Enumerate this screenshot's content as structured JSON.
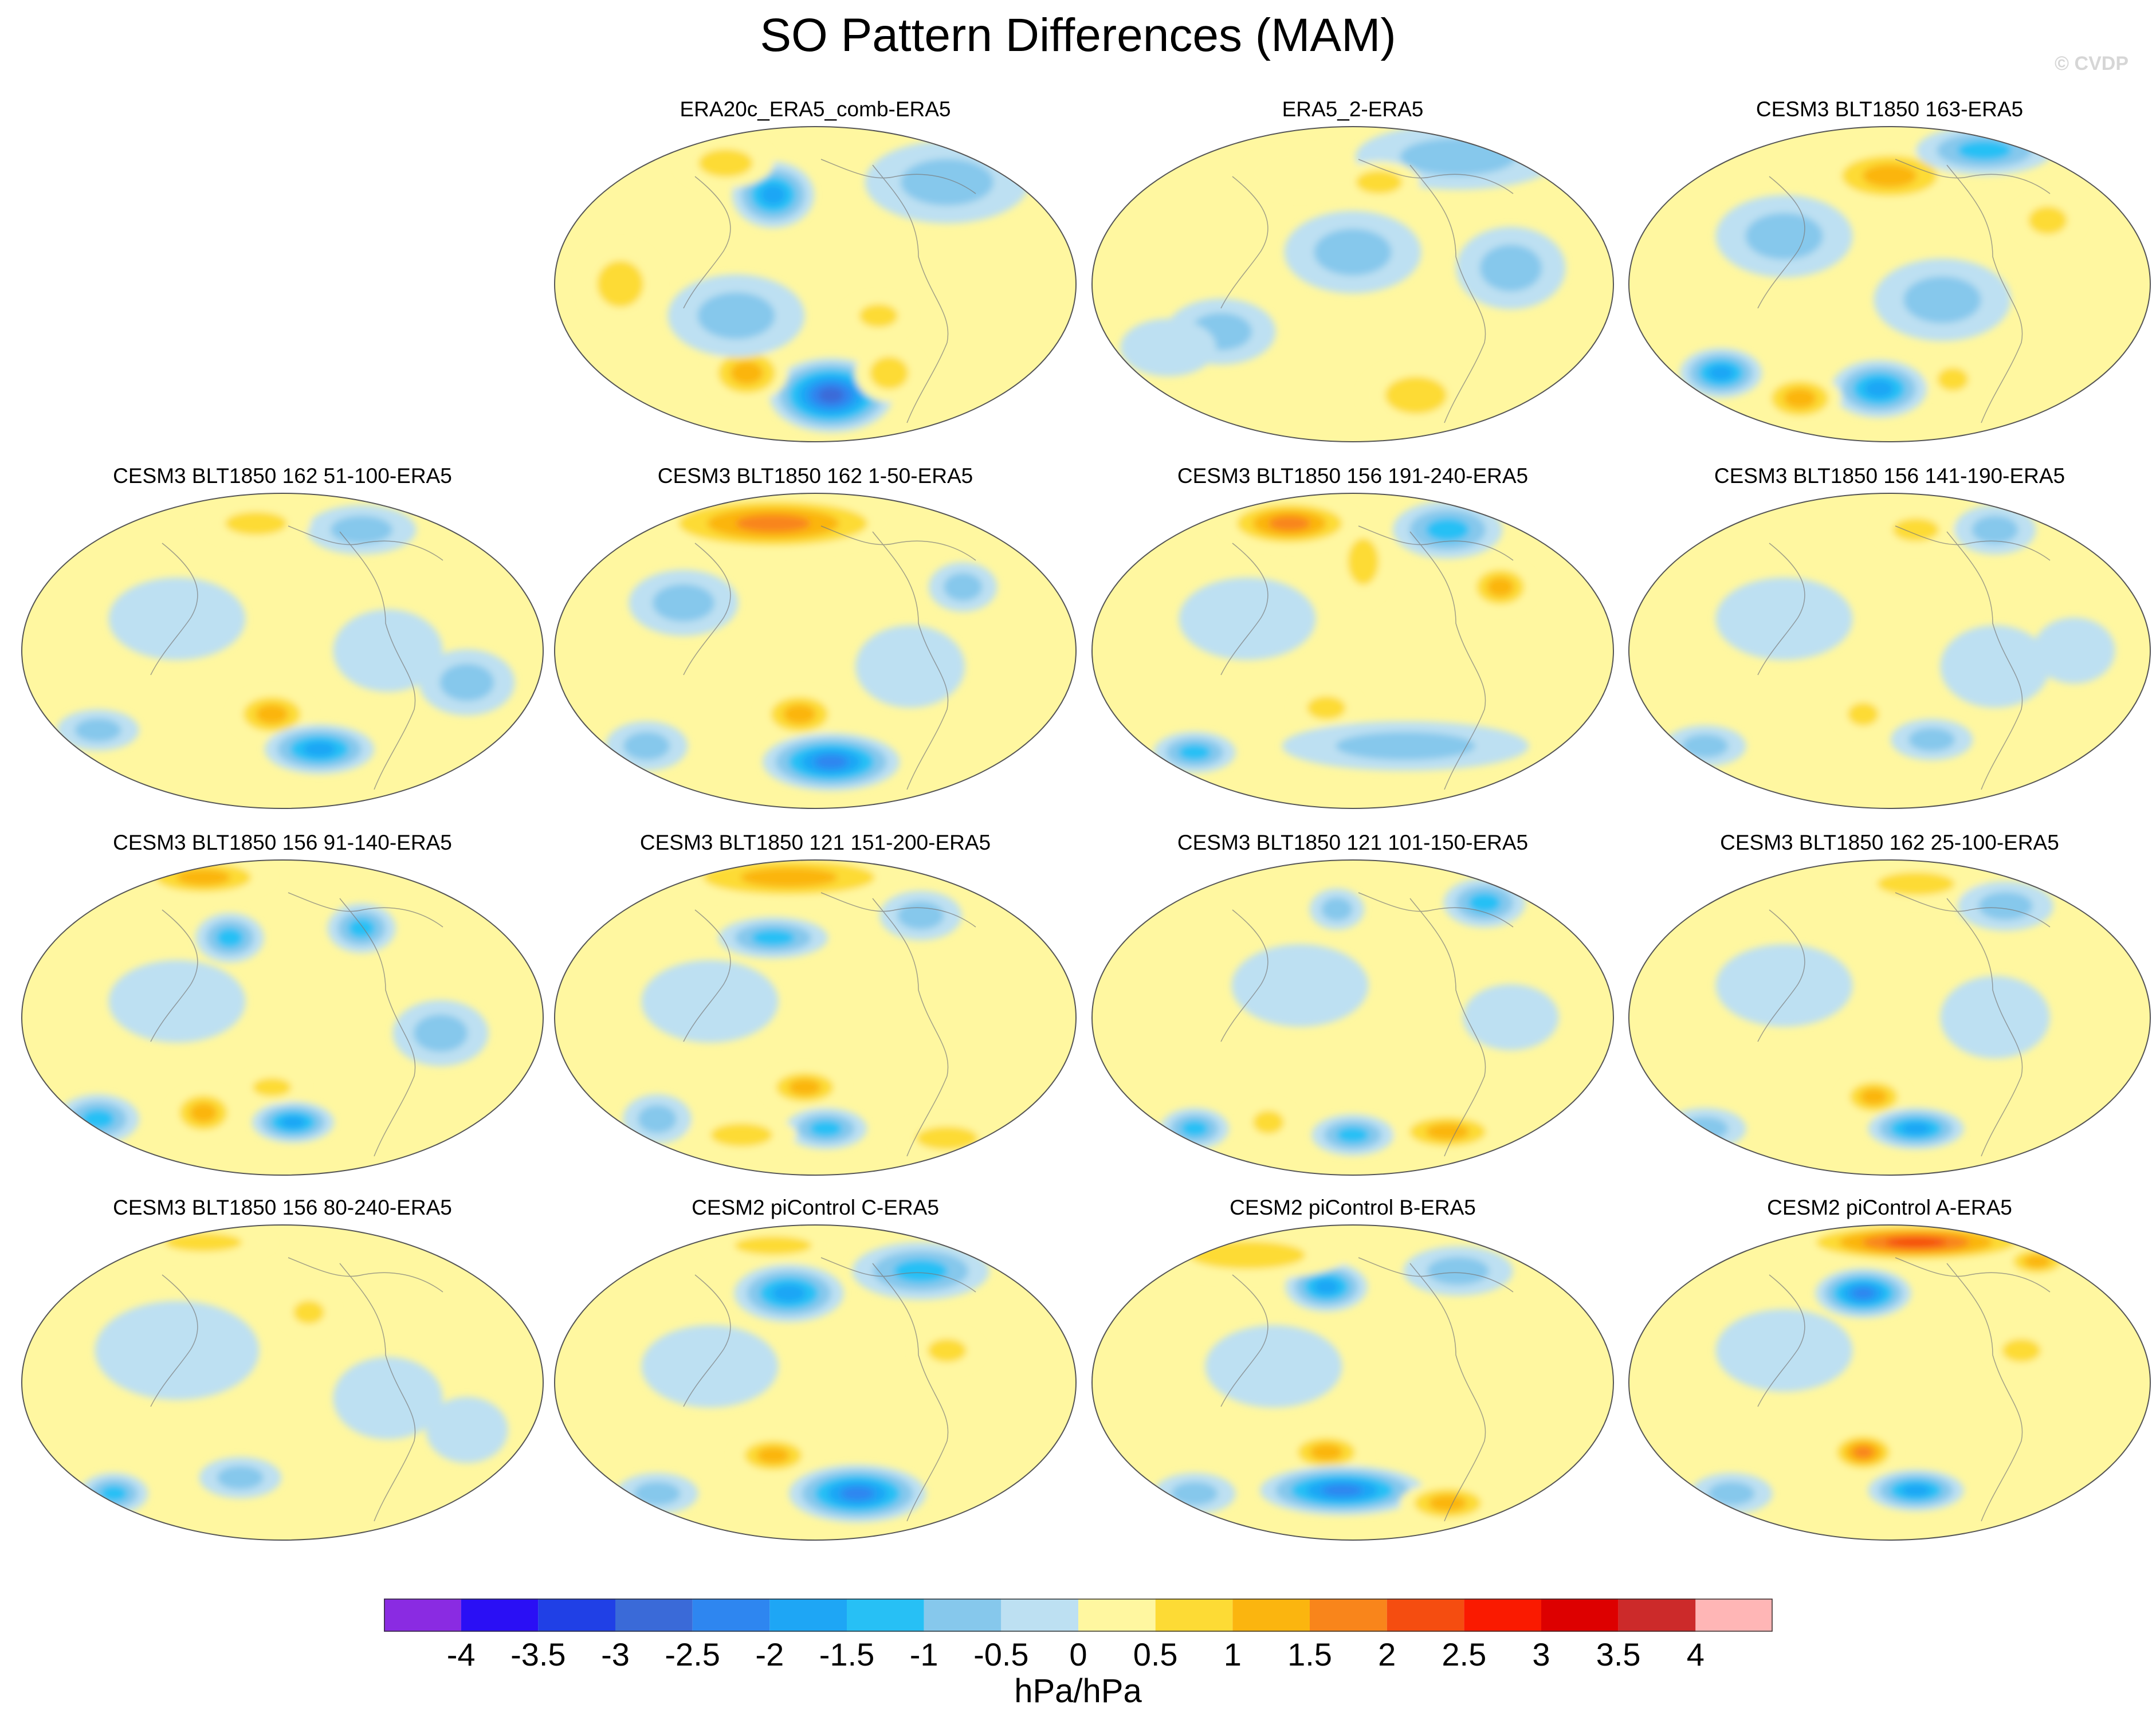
{
  "chart_data": {
    "type": "heatmap",
    "title": "SO Pattern Differences (MAM)",
    "credit": "© CVDP",
    "projection": "global map (Robinson-like)",
    "colorbar": {
      "label": "hPa/hPa",
      "ticks": [
        "-4",
        "-3.5",
        "-3",
        "-2.5",
        "-2",
        "-1.5",
        "-1",
        "-0.5",
        "0",
        "0.5",
        "1",
        "1.5",
        "2",
        "2.5",
        "3",
        "3.5",
        "4"
      ],
      "levels": [
        -4,
        -3.5,
        -3,
        -2.5,
        -2,
        -1.5,
        -1,
        -0.5,
        0,
        0.5,
        1,
        1.5,
        2,
        2.5,
        3,
        3.5,
        4
      ],
      "colors": [
        "#8a2be2",
        "#2a0ff5",
        "#2040e6",
        "#3a6ad8",
        "#2e86f0",
        "#1ea6f5",
        "#27c0f5",
        "#86c8ec",
        "#bde0f2",
        "#fff7a0",
        "#fddb35",
        "#fbb50f",
        "#f9851b",
        "#f54d10",
        "#fa1a00",
        "#dd0000",
        "#cc2a2a",
        "#ffb6b6"
      ]
    },
    "panels": [
      {
        "title": "ERA20c_ERA5_comb-ERA5",
        "row": 0,
        "col": 1,
        "blobs": [
          [
            0.42,
            0.22,
            0.06,
            0.08,
            -1.8
          ],
          [
            0.53,
            0.85,
            0.09,
            0.09,
            -3.0
          ],
          [
            0.37,
            0.78,
            0.06,
            0.07,
            1.2
          ],
          [
            0.64,
            0.78,
            0.05,
            0.07,
            1.0
          ],
          [
            0.33,
            0.12,
            0.07,
            0.06,
            0.8
          ],
          [
            0.75,
            0.18,
            0.12,
            0.1,
            -0.7
          ],
          [
            0.35,
            0.6,
            0.1,
            0.1,
            -0.6
          ],
          [
            0.62,
            0.6,
            0.05,
            0.05,
            0.6
          ],
          [
            0.13,
            0.5,
            0.06,
            0.1,
            0.6
          ]
        ]
      },
      {
        "title": "ERA5_2-ERA5",
        "row": 0,
        "col": 2,
        "blobs": [
          [
            0.7,
            0.1,
            0.15,
            0.08,
            -0.8
          ],
          [
            0.5,
            0.4,
            0.1,
            0.1,
            -0.6
          ],
          [
            0.25,
            0.65,
            0.08,
            0.08,
            -0.6
          ],
          [
            0.62,
            0.85,
            0.08,
            0.08,
            0.8
          ],
          [
            0.15,
            0.7,
            0.07,
            0.07,
            -0.5
          ],
          [
            0.8,
            0.45,
            0.08,
            0.1,
            -0.6
          ],
          [
            0.4,
            0.15,
            0.08,
            0.06,
            0.5
          ],
          [
            0.55,
            0.18,
            0.06,
            0.05,
            0.6
          ]
        ]
      },
      {
        "title": "CESM3 BLT1850 163-ERA5",
        "row": 0,
        "col": 3,
        "blobs": [
          [
            0.5,
            0.16,
            0.1,
            0.07,
            1.2
          ],
          [
            0.68,
            0.08,
            0.1,
            0.06,
            -1.5
          ],
          [
            0.18,
            0.78,
            0.06,
            0.06,
            -1.8
          ],
          [
            0.48,
            0.83,
            0.07,
            0.07,
            -2.0
          ],
          [
            0.33,
            0.86,
            0.06,
            0.06,
            1.2
          ],
          [
            0.62,
            0.8,
            0.04,
            0.05,
            0.8
          ],
          [
            0.8,
            0.3,
            0.05,
            0.06,
            1.0
          ],
          [
            0.3,
            0.35,
            0.1,
            0.1,
            -0.6
          ],
          [
            0.6,
            0.55,
            0.1,
            0.1,
            -0.6
          ]
        ]
      },
      {
        "title": "CESM3 BLT1850 162 51-100-ERA5",
        "row": 1,
        "col": 0,
        "blobs": [
          [
            0.48,
            0.7,
            0.06,
            0.06,
            1.4
          ],
          [
            0.57,
            0.81,
            0.08,
            0.06,
            -1.6
          ],
          [
            0.15,
            0.75,
            0.06,
            0.05,
            -0.8
          ],
          [
            0.65,
            0.12,
            0.08,
            0.06,
            -0.7
          ],
          [
            0.45,
            0.1,
            0.08,
            0.05,
            0.7
          ],
          [
            0.3,
            0.4,
            0.1,
            0.1,
            -0.5
          ],
          [
            0.7,
            0.5,
            0.08,
            0.1,
            -0.5
          ],
          [
            0.85,
            0.6,
            0.07,
            0.08,
            -0.6
          ]
        ]
      },
      {
        "title": "CESM3 BLT1850 162 1-50-ERA5",
        "row": 1,
        "col": 1,
        "blobs": [
          [
            0.42,
            0.1,
            0.18,
            0.07,
            1.6
          ],
          [
            0.47,
            0.7,
            0.06,
            0.06,
            1.5
          ],
          [
            0.53,
            0.85,
            0.1,
            0.07,
            -2.1
          ],
          [
            0.18,
            0.8,
            0.06,
            0.06,
            -0.8
          ],
          [
            0.78,
            0.3,
            0.05,
            0.06,
            -0.7
          ],
          [
            0.25,
            0.35,
            0.08,
            0.08,
            -0.6
          ],
          [
            0.68,
            0.55,
            0.08,
            0.1,
            -0.5
          ]
        ]
      },
      {
        "title": "CESM3 BLT1850 156 191-240-ERA5",
        "row": 1,
        "col": 2,
        "blobs": [
          [
            0.38,
            0.1,
            0.1,
            0.06,
            1.6
          ],
          [
            0.68,
            0.12,
            0.08,
            0.07,
            -1.2
          ],
          [
            0.78,
            0.3,
            0.05,
            0.06,
            1.2
          ],
          [
            0.52,
            0.22,
            0.04,
            0.1,
            0.8
          ],
          [
            0.45,
            0.68,
            0.05,
            0.05,
            1.0
          ],
          [
            0.2,
            0.82,
            0.06,
            0.05,
            -1.3
          ],
          [
            0.6,
            0.8,
            0.18,
            0.06,
            -1.0
          ],
          [
            0.3,
            0.4,
            0.1,
            0.1,
            -0.5
          ]
        ]
      },
      {
        "title": "CESM3 BLT1850 156 141-190-ERA5",
        "row": 1,
        "col": 3,
        "blobs": [
          [
            0.45,
            0.7,
            0.04,
            0.05,
            1.0
          ],
          [
            0.58,
            0.78,
            0.06,
            0.05,
            -0.9
          ],
          [
            0.15,
            0.8,
            0.06,
            0.05,
            -0.8
          ],
          [
            0.55,
            0.12,
            0.06,
            0.05,
            0.9
          ],
          [
            0.7,
            0.12,
            0.06,
            0.06,
            -0.7
          ],
          [
            0.3,
            0.4,
            0.1,
            0.1,
            -0.5
          ],
          [
            0.7,
            0.55,
            0.08,
            0.1,
            -0.5
          ],
          [
            0.85,
            0.5,
            0.06,
            0.08,
            -0.5
          ]
        ]
      },
      {
        "title": "CESM3 BLT1850 156 91-140-ERA5",
        "row": 2,
        "col": 0,
        "blobs": [
          [
            0.35,
            0.06,
            0.1,
            0.05,
            1.2
          ],
          [
            0.4,
            0.25,
            0.05,
            0.06,
            -1.3
          ],
          [
            0.65,
            0.22,
            0.05,
            0.06,
            -1.1
          ],
          [
            0.15,
            0.82,
            0.06,
            0.06,
            -1.3
          ],
          [
            0.35,
            0.8,
            0.05,
            0.06,
            1.3
          ],
          [
            0.52,
            0.83,
            0.06,
            0.05,
            -1.6
          ],
          [
            0.48,
            0.72,
            0.05,
            0.04,
            0.9
          ],
          [
            0.3,
            0.45,
            0.1,
            0.1,
            -0.5
          ],
          [
            0.8,
            0.55,
            0.07,
            0.08,
            -0.6
          ]
        ]
      },
      {
        "title": "CESM3 BLT1850 121 151-200-ERA5",
        "row": 2,
        "col": 1,
        "blobs": [
          [
            0.45,
            0.06,
            0.18,
            0.06,
            1.3
          ],
          [
            0.42,
            0.25,
            0.08,
            0.05,
            -1.1
          ],
          [
            0.7,
            0.18,
            0.06,
            0.06,
            -1.0
          ],
          [
            0.48,
            0.72,
            0.06,
            0.05,
            1.1
          ],
          [
            0.52,
            0.85,
            0.06,
            0.05,
            -1.3
          ],
          [
            0.36,
            0.87,
            0.08,
            0.05,
            1.0
          ],
          [
            0.2,
            0.82,
            0.05,
            0.06,
            -0.9
          ],
          [
            0.75,
            0.88,
            0.08,
            0.05,
            0.9
          ],
          [
            0.3,
            0.45,
            0.1,
            0.1,
            -0.5
          ]
        ]
      },
      {
        "title": "CESM3 BLT1850 121 101-150-ERA5",
        "row": 2,
        "col": 2,
        "blobs": [
          [
            0.75,
            0.14,
            0.06,
            0.06,
            -1.4
          ],
          [
            0.47,
            0.16,
            0.04,
            0.05,
            -0.8
          ],
          [
            0.2,
            0.85,
            0.05,
            0.05,
            -1.2
          ],
          [
            0.5,
            0.87,
            0.06,
            0.05,
            -1.3
          ],
          [
            0.34,
            0.83,
            0.04,
            0.05,
            1.0
          ],
          [
            0.68,
            0.86,
            0.08,
            0.05,
            1.3
          ],
          [
            0.4,
            0.4,
            0.1,
            0.1,
            -0.5
          ],
          [
            0.8,
            0.5,
            0.07,
            0.08,
            -0.5
          ]
        ]
      },
      {
        "title": "CESM3 BLT1850 162 25-100-ERA5",
        "row": 2,
        "col": 3,
        "blobs": [
          [
            0.47,
            0.75,
            0.05,
            0.05,
            1.4
          ],
          [
            0.55,
            0.85,
            0.07,
            0.05,
            -1.6
          ],
          [
            0.15,
            0.85,
            0.06,
            0.05,
            -0.8
          ],
          [
            0.55,
            0.08,
            0.1,
            0.05,
            0.9
          ],
          [
            0.72,
            0.15,
            0.07,
            0.06,
            -0.7
          ],
          [
            0.3,
            0.4,
            0.1,
            0.1,
            -0.5
          ],
          [
            0.7,
            0.5,
            0.08,
            0.1,
            -0.5
          ]
        ]
      },
      {
        "title": "CESM3 BLT1850 156 80-240-ERA5",
        "row": 3,
        "col": 0,
        "blobs": [
          [
            0.35,
            0.06,
            0.1,
            0.04,
            0.9
          ],
          [
            0.55,
            0.28,
            0.04,
            0.05,
            0.8
          ],
          [
            0.18,
            0.85,
            0.05,
            0.05,
            -1.1
          ],
          [
            0.42,
            0.8,
            0.06,
            0.05,
            -0.8
          ],
          [
            0.3,
            0.4,
            0.12,
            0.12,
            -0.5
          ],
          [
            0.7,
            0.55,
            0.08,
            0.1,
            -0.5
          ],
          [
            0.85,
            0.65,
            0.06,
            0.08,
            -0.5
          ]
        ]
      },
      {
        "title": "CESM2 piControl C-ERA5",
        "row": 3,
        "col": 1,
        "blobs": [
          [
            0.45,
            0.22,
            0.08,
            0.07,
            -2.0
          ],
          [
            0.7,
            0.15,
            0.1,
            0.07,
            -1.2
          ],
          [
            0.58,
            0.85,
            0.1,
            0.07,
            -2.3
          ],
          [
            0.42,
            0.73,
            0.06,
            0.05,
            1.3
          ],
          [
            0.42,
            0.07,
            0.1,
            0.04,
            1.0
          ],
          [
            0.75,
            0.4,
            0.05,
            0.05,
            0.7
          ],
          [
            0.2,
            0.85,
            0.06,
            0.05,
            -0.7
          ],
          [
            0.3,
            0.45,
            0.1,
            0.1,
            -0.5
          ]
        ]
      },
      {
        "title": "CESM2 piControl B-ERA5",
        "row": 3,
        "col": 2,
        "blobs": [
          [
            0.45,
            0.2,
            0.06,
            0.06,
            -1.6
          ],
          [
            0.45,
            0.72,
            0.06,
            0.05,
            1.4
          ],
          [
            0.48,
            0.84,
            0.12,
            0.06,
            -2.1
          ],
          [
            0.68,
            0.88,
            0.07,
            0.05,
            1.2
          ],
          [
            0.3,
            0.1,
            0.15,
            0.06,
            1.0
          ],
          [
            0.7,
            0.15,
            0.08,
            0.06,
            -0.8
          ],
          [
            0.2,
            0.85,
            0.06,
            0.05,
            -1.0
          ],
          [
            0.35,
            0.45,
            0.1,
            0.1,
            -0.5
          ]
        ]
      },
      {
        "title": "CESM2 piControl A-ERA5",
        "row": 3,
        "col": 3,
        "blobs": [
          [
            0.55,
            0.06,
            0.18,
            0.05,
            2.2
          ],
          [
            0.45,
            0.22,
            0.07,
            0.06,
            -2.1
          ],
          [
            0.78,
            0.12,
            0.05,
            0.04,
            1.5
          ],
          [
            0.45,
            0.72,
            0.05,
            0.05,
            1.6
          ],
          [
            0.55,
            0.84,
            0.07,
            0.05,
            -1.8
          ],
          [
            0.2,
            0.85,
            0.06,
            0.05,
            -0.9
          ],
          [
            0.75,
            0.4,
            0.05,
            0.05,
            0.7
          ],
          [
            0.3,
            0.4,
            0.1,
            0.1,
            -0.5
          ]
        ]
      }
    ]
  }
}
